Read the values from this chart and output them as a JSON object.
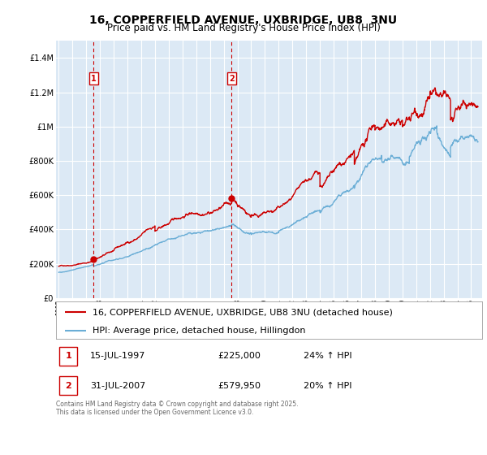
{
  "title": "16, COPPERFIELD AVENUE, UXBRIDGE, UB8  3NU",
  "subtitle": "Price paid vs. HM Land Registry's House Price Index (HPI)",
  "ylim": [
    0,
    1500000
  ],
  "yticks": [
    0,
    200000,
    400000,
    600000,
    800000,
    1000000,
    1200000,
    1400000
  ],
  "ytick_labels": [
    "£0",
    "£200K",
    "£400K",
    "£600K",
    "£800K",
    "£1M",
    "£1.2M",
    "£1.4M"
  ],
  "xlim_start": 1994.8,
  "xlim_end": 2025.8,
  "bg_color": "#ffffff",
  "chart_bg_color": "#dce9f5",
  "grid_color": "#ffffff",
  "red_color": "#cc0000",
  "blue_color": "#6baed6",
  "purchase1_date": 1997.54,
  "purchase1_price": 225000,
  "purchase2_date": 2007.58,
  "purchase2_price": 579950,
  "legend1": "16, COPPERFIELD AVENUE, UXBRIDGE, UB8 3NU (detached house)",
  "legend2": "HPI: Average price, detached house, Hillingdon",
  "table_row1": [
    "1",
    "15-JUL-1997",
    "£225,000",
    "24% ↑ HPI"
  ],
  "table_row2": [
    "2",
    "31-JUL-2007",
    "£579,950",
    "20% ↑ HPI"
  ],
  "footnote": "Contains HM Land Registry data © Crown copyright and database right 2025.\nThis data is licensed under the Open Government Licence v3.0.",
  "title_fontsize": 10,
  "subtitle_fontsize": 8.5,
  "tick_fontsize": 7,
  "legend_fontsize": 8
}
